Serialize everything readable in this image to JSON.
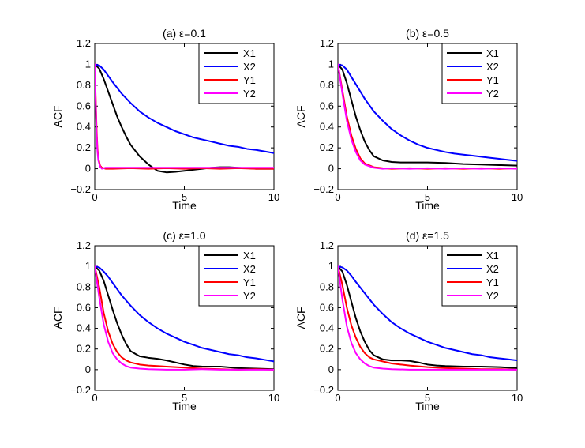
{
  "figure": {
    "background": "#ffffff"
  },
  "legend": {
    "entries": [
      {
        "name": "X1",
        "color": "#000000"
      },
      {
        "name": "X2",
        "color": "#0000ff"
      },
      {
        "name": "Y1",
        "color": "#ff0000"
      },
      {
        "name": "Y2",
        "color": "#ff00ff"
      }
    ]
  },
  "chart_data": [
    {
      "type": "line",
      "title": "(a) ε=0.1",
      "xlabel": "Time",
      "ylabel": "ACF",
      "xlim": [
        0,
        10
      ],
      "ylim": [
        -0.2,
        1.2
      ],
      "xticks": [
        0,
        5,
        10
      ],
      "yticks": [
        -0.2,
        0,
        0.2,
        0.4,
        0.6,
        0.8,
        1,
        1.2
      ],
      "ytick_labels": [
        "−0.2",
        "0",
        "0.2",
        "0.4",
        "0.6",
        "0.8",
        "1",
        "1.2"
      ],
      "series": [
        {
          "name": "X1",
          "color": "#000000",
          "x": [
            0,
            0.25,
            0.5,
            0.75,
            1,
            1.25,
            1.5,
            1.75,
            2,
            2.5,
            3,
            3.5,
            4,
            4.5,
            5,
            5.5,
            6,
            6.5,
            7,
            7.5,
            8,
            8.5,
            9,
            9.5,
            10
          ],
          "y": [
            1,
            0.96,
            0.86,
            0.74,
            0.62,
            0.5,
            0.4,
            0.31,
            0.23,
            0.12,
            0.04,
            -0.02,
            -0.035,
            -0.03,
            -0.02,
            -0.01,
            0,
            0.01,
            0.015,
            0.015,
            0.01,
            0.005,
            0,
            0,
            0
          ]
        },
        {
          "name": "X2",
          "color": "#0000ff",
          "x": [
            0,
            0.25,
            0.5,
            0.75,
            1,
            1.5,
            2,
            2.5,
            3,
            3.5,
            4,
            4.5,
            5,
            5.5,
            6,
            6.5,
            7,
            7.5,
            8,
            8.5,
            9,
            9.5,
            10
          ],
          "y": [
            1,
            0.99,
            0.95,
            0.89,
            0.83,
            0.72,
            0.63,
            0.55,
            0.49,
            0.44,
            0.4,
            0.36,
            0.33,
            0.3,
            0.28,
            0.26,
            0.24,
            0.22,
            0.21,
            0.19,
            0.18,
            0.165,
            0.15
          ]
        },
        {
          "name": "Y1",
          "color": "#ff0000",
          "x": [
            0,
            0.05,
            0.1,
            0.15,
            0.2,
            0.3,
            0.4,
            0.6,
            1,
            2,
            3,
            4,
            5,
            6,
            7,
            8,
            9,
            10
          ],
          "y": [
            1,
            0.7,
            0.4,
            0.2,
            0.1,
            0.03,
            0.01,
            0,
            0,
            0.005,
            0,
            0.005,
            0,
            0.005,
            0,
            0.005,
            0,
            0
          ]
        },
        {
          "name": "Y2",
          "color": "#ff00ff",
          "x": [
            0,
            0.05,
            0.1,
            0.15,
            0.2,
            0.3,
            0.4,
            0.6,
            1,
            2,
            3,
            4,
            5,
            6,
            7,
            8,
            9,
            10
          ],
          "y": [
            1,
            0.65,
            0.35,
            0.17,
            0.08,
            0.02,
            0,
            0.01,
            0.01,
            0.01,
            0.01,
            0.01,
            0.01,
            0.01,
            0.01,
            0.01,
            0.01,
            0.01
          ]
        }
      ]
    },
    {
      "type": "line",
      "title": "(b) ε=0.5",
      "xlabel": "Time",
      "ylabel": "ACF",
      "xlim": [
        0,
        10
      ],
      "ylim": [
        -0.2,
        1.2
      ],
      "xticks": [
        0,
        5,
        10
      ],
      "yticks": [
        -0.2,
        0,
        0.2,
        0.4,
        0.6,
        0.8,
        1,
        1.2
      ],
      "ytick_labels": [
        "−0.2",
        "0",
        "0.2",
        "0.4",
        "0.6",
        "0.8",
        "1",
        "1.2"
      ],
      "series": [
        {
          "name": "X1",
          "color": "#000000",
          "x": [
            0,
            0.25,
            0.5,
            0.75,
            1,
            1.25,
            1.5,
            1.75,
            2,
            2.5,
            3,
            3.5,
            4,
            5,
            6,
            7,
            8,
            9,
            10
          ],
          "y": [
            1,
            0.95,
            0.82,
            0.66,
            0.5,
            0.37,
            0.26,
            0.18,
            0.12,
            0.08,
            0.065,
            0.06,
            0.06,
            0.06,
            0.055,
            0.045,
            0.04,
            0.035,
            0.03
          ]
        },
        {
          "name": "X2",
          "color": "#0000ff",
          "x": [
            0,
            0.25,
            0.5,
            0.75,
            1,
            1.5,
            2,
            2.5,
            3,
            3.5,
            4,
            4.5,
            5,
            5.5,
            6,
            6.5,
            7,
            7.5,
            8,
            8.5,
            9,
            9.5,
            10
          ],
          "y": [
            1,
            0.99,
            0.95,
            0.88,
            0.81,
            0.67,
            0.55,
            0.46,
            0.38,
            0.32,
            0.27,
            0.23,
            0.2,
            0.18,
            0.16,
            0.145,
            0.135,
            0.125,
            0.115,
            0.105,
            0.095,
            0.085,
            0.075
          ]
        },
        {
          "name": "Y1",
          "color": "#ff0000",
          "x": [
            0,
            0.25,
            0.5,
            0.75,
            1,
            1.25,
            1.5,
            2,
            2.5,
            3,
            4,
            5,
            6,
            7,
            8,
            9,
            10
          ],
          "y": [
            1,
            0.75,
            0.5,
            0.32,
            0.19,
            0.1,
            0.05,
            0.015,
            0.005,
            0,
            0.005,
            0,
            0.005,
            0,
            0.005,
            0,
            0.005
          ]
        },
        {
          "name": "Y2",
          "color": "#ff00ff",
          "x": [
            0,
            0.25,
            0.5,
            0.75,
            1,
            1.25,
            1.5,
            2,
            2.5,
            3,
            4,
            5,
            6,
            7,
            8,
            9,
            10
          ],
          "y": [
            1,
            0.72,
            0.46,
            0.28,
            0.16,
            0.08,
            0.04,
            0.01,
            0,
            0.005,
            0,
            0.005,
            0,
            0.005,
            0,
            0.005,
            0
          ]
        }
      ]
    },
    {
      "type": "line",
      "title": "(c) ε=1.0",
      "xlabel": "Time",
      "ylabel": "ACF",
      "xlim": [
        0,
        10
      ],
      "ylim": [
        -0.2,
        1.2
      ],
      "xticks": [
        0,
        5,
        10
      ],
      "yticks": [
        -0.2,
        0,
        0.2,
        0.4,
        0.6,
        0.8,
        1,
        1.2
      ],
      "ytick_labels": [
        "−0.2",
        "0",
        "0.2",
        "0.4",
        "0.6",
        "0.8",
        "1",
        "1.2"
      ],
      "series": [
        {
          "name": "X1",
          "color": "#000000",
          "x": [
            0,
            0.25,
            0.5,
            0.75,
            1,
            1.25,
            1.5,
            1.75,
            2,
            2.5,
            3,
            3.5,
            4,
            4.5,
            5,
            5.5,
            6,
            7,
            8,
            9,
            10
          ],
          "y": [
            1,
            0.96,
            0.86,
            0.72,
            0.58,
            0.45,
            0.34,
            0.25,
            0.18,
            0.13,
            0.115,
            0.105,
            0.09,
            0.07,
            0.05,
            0.035,
            0.03,
            0.03,
            0.015,
            0.01,
            0.005
          ]
        },
        {
          "name": "X2",
          "color": "#0000ff",
          "x": [
            0,
            0.25,
            0.5,
            0.75,
            1,
            1.5,
            2,
            2.5,
            3,
            3.5,
            4,
            4.5,
            5,
            5.5,
            6,
            6.5,
            7,
            7.5,
            8,
            8.5,
            9,
            9.5,
            10
          ],
          "y": [
            1,
            0.99,
            0.95,
            0.9,
            0.84,
            0.72,
            0.62,
            0.53,
            0.46,
            0.4,
            0.35,
            0.31,
            0.27,
            0.24,
            0.21,
            0.19,
            0.17,
            0.15,
            0.14,
            0.12,
            0.11,
            0.095,
            0.08
          ]
        },
        {
          "name": "Y1",
          "color": "#ff0000",
          "x": [
            0,
            0.25,
            0.5,
            0.75,
            1,
            1.25,
            1.5,
            1.75,
            2,
            2.5,
            3,
            3.5,
            4,
            5,
            6,
            7,
            8,
            9,
            10
          ],
          "y": [
            1,
            0.8,
            0.55,
            0.37,
            0.25,
            0.17,
            0.12,
            0.09,
            0.07,
            0.05,
            0.04,
            0.035,
            0.03,
            0.02,
            0.01,
            0.005,
            0,
            0.005,
            0
          ]
        },
        {
          "name": "Y2",
          "color": "#ff00ff",
          "x": [
            0,
            0.25,
            0.5,
            0.75,
            1,
            1.25,
            1.5,
            1.75,
            2,
            2.5,
            3,
            4,
            5,
            6,
            7,
            8,
            9,
            10
          ],
          "y": [
            1,
            0.7,
            0.44,
            0.27,
            0.16,
            0.1,
            0.06,
            0.035,
            0.02,
            0.01,
            0.005,
            0,
            0,
            0.005,
            0,
            0,
            0,
            0
          ]
        }
      ]
    },
    {
      "type": "line",
      "title": "(d) ε=1.5",
      "xlabel": "Time",
      "ylabel": "ACF",
      "xlim": [
        0,
        10
      ],
      "ylim": [
        -0.2,
        1.2
      ],
      "xticks": [
        0,
        5,
        10
      ],
      "yticks": [
        -0.2,
        0,
        0.2,
        0.4,
        0.6,
        0.8,
        1,
        1.2
      ],
      "ytick_labels": [
        "−0.2",
        "0",
        "0.2",
        "0.4",
        "0.6",
        "0.8",
        "1",
        "1.2"
      ],
      "series": [
        {
          "name": "X1",
          "color": "#000000",
          "x": [
            0,
            0.25,
            0.5,
            0.75,
            1,
            1.25,
            1.5,
            1.75,
            2,
            2.5,
            3,
            3.5,
            4,
            4.5,
            5,
            5.5,
            6,
            7,
            8,
            9,
            10
          ],
          "y": [
            1,
            0.95,
            0.82,
            0.66,
            0.5,
            0.37,
            0.27,
            0.19,
            0.14,
            0.1,
            0.09,
            0.09,
            0.085,
            0.07,
            0.05,
            0.04,
            0.035,
            0.03,
            0.03,
            0.025,
            0.015
          ]
        },
        {
          "name": "X2",
          "color": "#0000ff",
          "x": [
            0,
            0.25,
            0.5,
            0.75,
            1,
            1.5,
            2,
            2.5,
            3,
            3.5,
            4,
            4.5,
            5,
            5.5,
            6,
            6.5,
            7,
            7.5,
            8,
            8.5,
            9,
            9.5,
            10
          ],
          "y": [
            1,
            0.99,
            0.96,
            0.91,
            0.85,
            0.74,
            0.63,
            0.54,
            0.46,
            0.4,
            0.35,
            0.31,
            0.27,
            0.24,
            0.21,
            0.19,
            0.17,
            0.15,
            0.14,
            0.12,
            0.11,
            0.1,
            0.09
          ]
        },
        {
          "name": "Y1",
          "color": "#ff0000",
          "x": [
            0,
            0.25,
            0.5,
            0.75,
            1,
            1.25,
            1.5,
            1.75,
            2,
            2.5,
            3,
            3.5,
            4,
            5,
            6,
            7,
            8,
            9,
            10
          ],
          "y": [
            1,
            0.82,
            0.6,
            0.43,
            0.31,
            0.22,
            0.16,
            0.12,
            0.1,
            0.08,
            0.06,
            0.05,
            0.04,
            0.025,
            0.015,
            0.01,
            0.005,
            0.005,
            0
          ]
        },
        {
          "name": "Y2",
          "color": "#ff00ff",
          "x": [
            0,
            0.25,
            0.5,
            0.75,
            1,
            1.25,
            1.5,
            1.75,
            2,
            2.5,
            3,
            4,
            5,
            6,
            7,
            8,
            9,
            10
          ],
          "y": [
            1,
            0.68,
            0.42,
            0.26,
            0.16,
            0.1,
            0.06,
            0.035,
            0.02,
            0.01,
            0.005,
            0,
            0,
            0,
            0,
            0,
            0,
            0
          ]
        }
      ]
    }
  ]
}
